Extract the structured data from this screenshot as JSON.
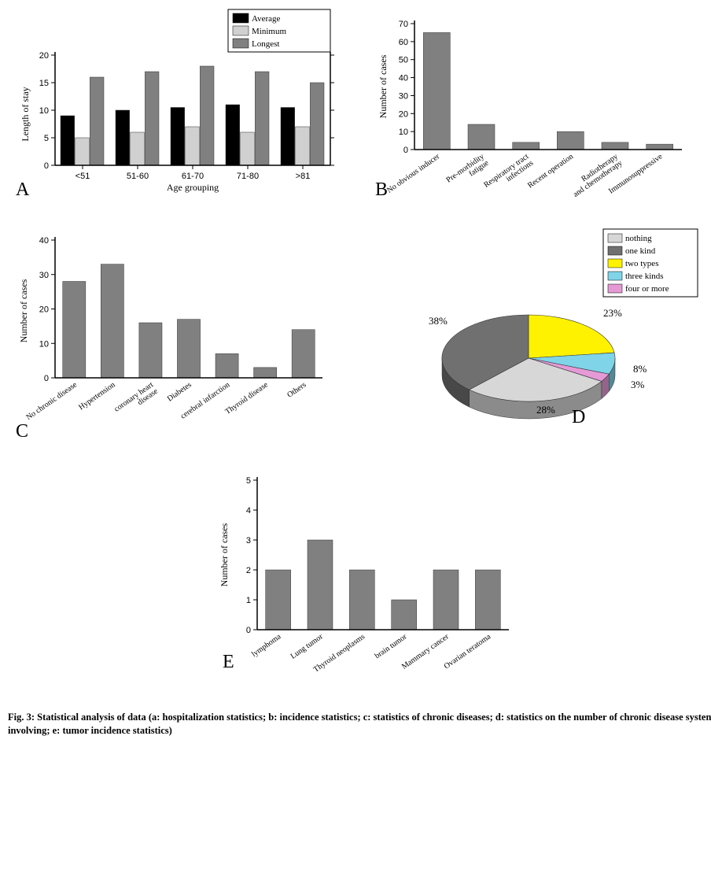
{
  "figure_label": "Fig. 3:",
  "caption": "Statistical analysis of data (a: hospitalization statistics; b: incidence statistics; c: statistics of chronic diseases; d: statistics on the number of chronic disease systems involving; e: tumor incidence statistics)",
  "colors": {
    "black_bar": "#000000",
    "light_bar": "#d0d0d0",
    "dark_bar": "#808080",
    "bar_c": "#808080",
    "axis": "#000000",
    "bg": "#ffffff",
    "pie_nothing": "#d7d7d7",
    "pie_one": "#707070",
    "pie_two": "#fff200",
    "pie_three": "#7fd4e8",
    "pie_four": "#e59ad6"
  },
  "panelA": {
    "label": "A",
    "type": "grouped-bar",
    "xlabel": "Age grouping",
    "ylabel": "Length of stay",
    "ylim": [
      0,
      20
    ],
    "ytick_step": 5,
    "categories": [
      "<51",
      "51-60",
      "61-70",
      "71-80",
      ">81"
    ],
    "series": [
      {
        "name": "Average",
        "color": "#000000",
        "values": [
          9,
          10,
          10.5,
          11,
          10.5
        ]
      },
      {
        "name": "Minimum",
        "color": "#d0d0d0",
        "values": [
          5,
          6,
          7,
          6,
          7
        ]
      },
      {
        "name": "Longest",
        "color": "#808080",
        "values": [
          16,
          17,
          18,
          17,
          15
        ]
      }
    ],
    "legend_pos": "top-right-above",
    "bar_group_width": 0.8
  },
  "panelB": {
    "label": "B",
    "type": "bar",
    "ylabel": "Number of cases",
    "ylim": [
      0,
      70
    ],
    "ytick_step": 10,
    "categories": [
      "No obvious inducer",
      "Pre-morbidity fatigue",
      "Respiratory tract infections",
      "Recent operation",
      "Radiotherapy and chemotherapy",
      "Immunosuppressive"
    ],
    "values": [
      65,
      14,
      4,
      10,
      4,
      3
    ],
    "bar_color": "#808080",
    "xlabel_rotation": -35
  },
  "panelC": {
    "label": "C",
    "type": "bar",
    "ylabel": "Number of cases",
    "ylim": [
      0,
      40
    ],
    "ytick_step": 10,
    "categories": [
      "No chronic disease",
      "Hypertension",
      "coronary heart disease",
      "Diabetes",
      "cerebral infarction",
      "Thyroid disease",
      "Others"
    ],
    "values": [
      28,
      33,
      16,
      17,
      7,
      3,
      14
    ],
    "bar_color": "#808080",
    "xlabel_rotation": -35
  },
  "panelD": {
    "label": "D",
    "type": "pie-3d",
    "slices": [
      {
        "name": "nothing",
        "pct": 28,
        "color": "#d7d7d7"
      },
      {
        "name": "one kind",
        "pct": 38,
        "color": "#707070"
      },
      {
        "name": "two types",
        "pct": 23,
        "color": "#fff200"
      },
      {
        "name": "three kinds",
        "pct": 8,
        "color": "#7fd4e8"
      },
      {
        "name": "four or more",
        "pct": 3,
        "color": "#e59ad6"
      }
    ]
  },
  "panelE": {
    "label": "E",
    "type": "bar",
    "ylabel": "Number of cases",
    "ylim": [
      0,
      5
    ],
    "ytick_step": 1,
    "categories": [
      "lymphoma",
      "Lung tumor",
      "Thyroid neoplasms",
      "brain tumor",
      "Mammary cancer",
      "Ovarian teratoma"
    ],
    "values": [
      2,
      3,
      2,
      1,
      2,
      2
    ],
    "bar_color": "#808080",
    "xlabel_rotation": -35
  }
}
